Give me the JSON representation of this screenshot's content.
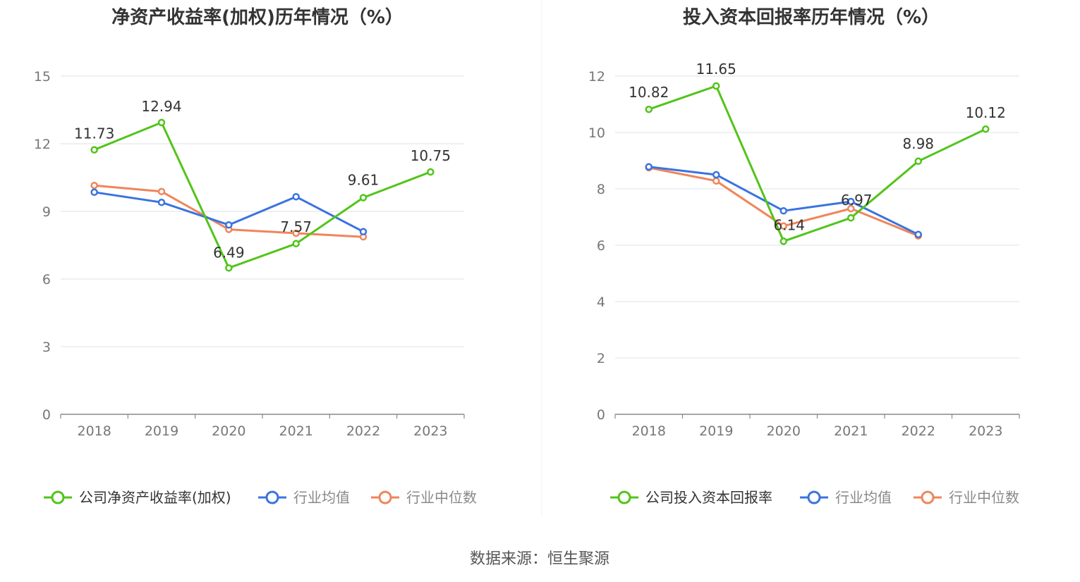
{
  "colors": {
    "company": "#52c41a",
    "industry_avg": "#3a73e0",
    "industry_median": "#f0855a",
    "grid": "#e3e6ef",
    "axis": "#888888"
  },
  "source_text": "数据来源：恒生聚源",
  "chart_data": [
    {
      "type": "line",
      "title": "净资产收益率(加权)历年情况（%）",
      "categories": [
        "2018",
        "2019",
        "2020",
        "2021",
        "2022",
        "2023"
      ],
      "ylim": [
        0,
        15
      ],
      "yticks": [
        0,
        3,
        6,
        9,
        12,
        15
      ],
      "grid": true,
      "legend_position": "bottom",
      "series": [
        {
          "key": "company",
          "name": "公司净资产收益率(加权)",
          "values": [
            11.73,
            12.94,
            6.49,
            7.57,
            9.61,
            10.75
          ],
          "labels": [
            "11.73",
            "12.94",
            "6.49",
            "7.57",
            "9.61",
            "10.75"
          ]
        },
        {
          "key": "industry_avg",
          "name": "行业均值",
          "values": [
            9.85,
            9.4,
            8.4,
            9.65,
            8.1,
            null
          ]
        },
        {
          "key": "industry_median",
          "name": "行业中位数",
          "values": [
            10.15,
            9.88,
            8.2,
            8.03,
            7.87,
            null
          ]
        }
      ]
    },
    {
      "type": "line",
      "title": "投入资本回报率历年情况（%）",
      "categories": [
        "2018",
        "2019",
        "2020",
        "2021",
        "2022",
        "2023"
      ],
      "ylim": [
        0,
        12
      ],
      "yticks": [
        0,
        2,
        4,
        6,
        8,
        10,
        12
      ],
      "grid": true,
      "legend_position": "bottom",
      "series": [
        {
          "key": "company",
          "name": "公司投入资本回报率",
          "values": [
            10.82,
            11.65,
            6.14,
            6.97,
            8.98,
            10.12
          ],
          "labels": [
            "10.82",
            "11.65",
            "6.14",
            "6.97",
            "8.98",
            "10.12"
          ]
        },
        {
          "key": "industry_avg",
          "name": "行业均值",
          "values": [
            8.78,
            8.5,
            7.22,
            7.55,
            6.38,
            null
          ]
        },
        {
          "key": "industry_median",
          "name": "行业中位数",
          "values": [
            8.75,
            8.28,
            6.68,
            7.3,
            6.33,
            null
          ]
        }
      ]
    }
  ]
}
